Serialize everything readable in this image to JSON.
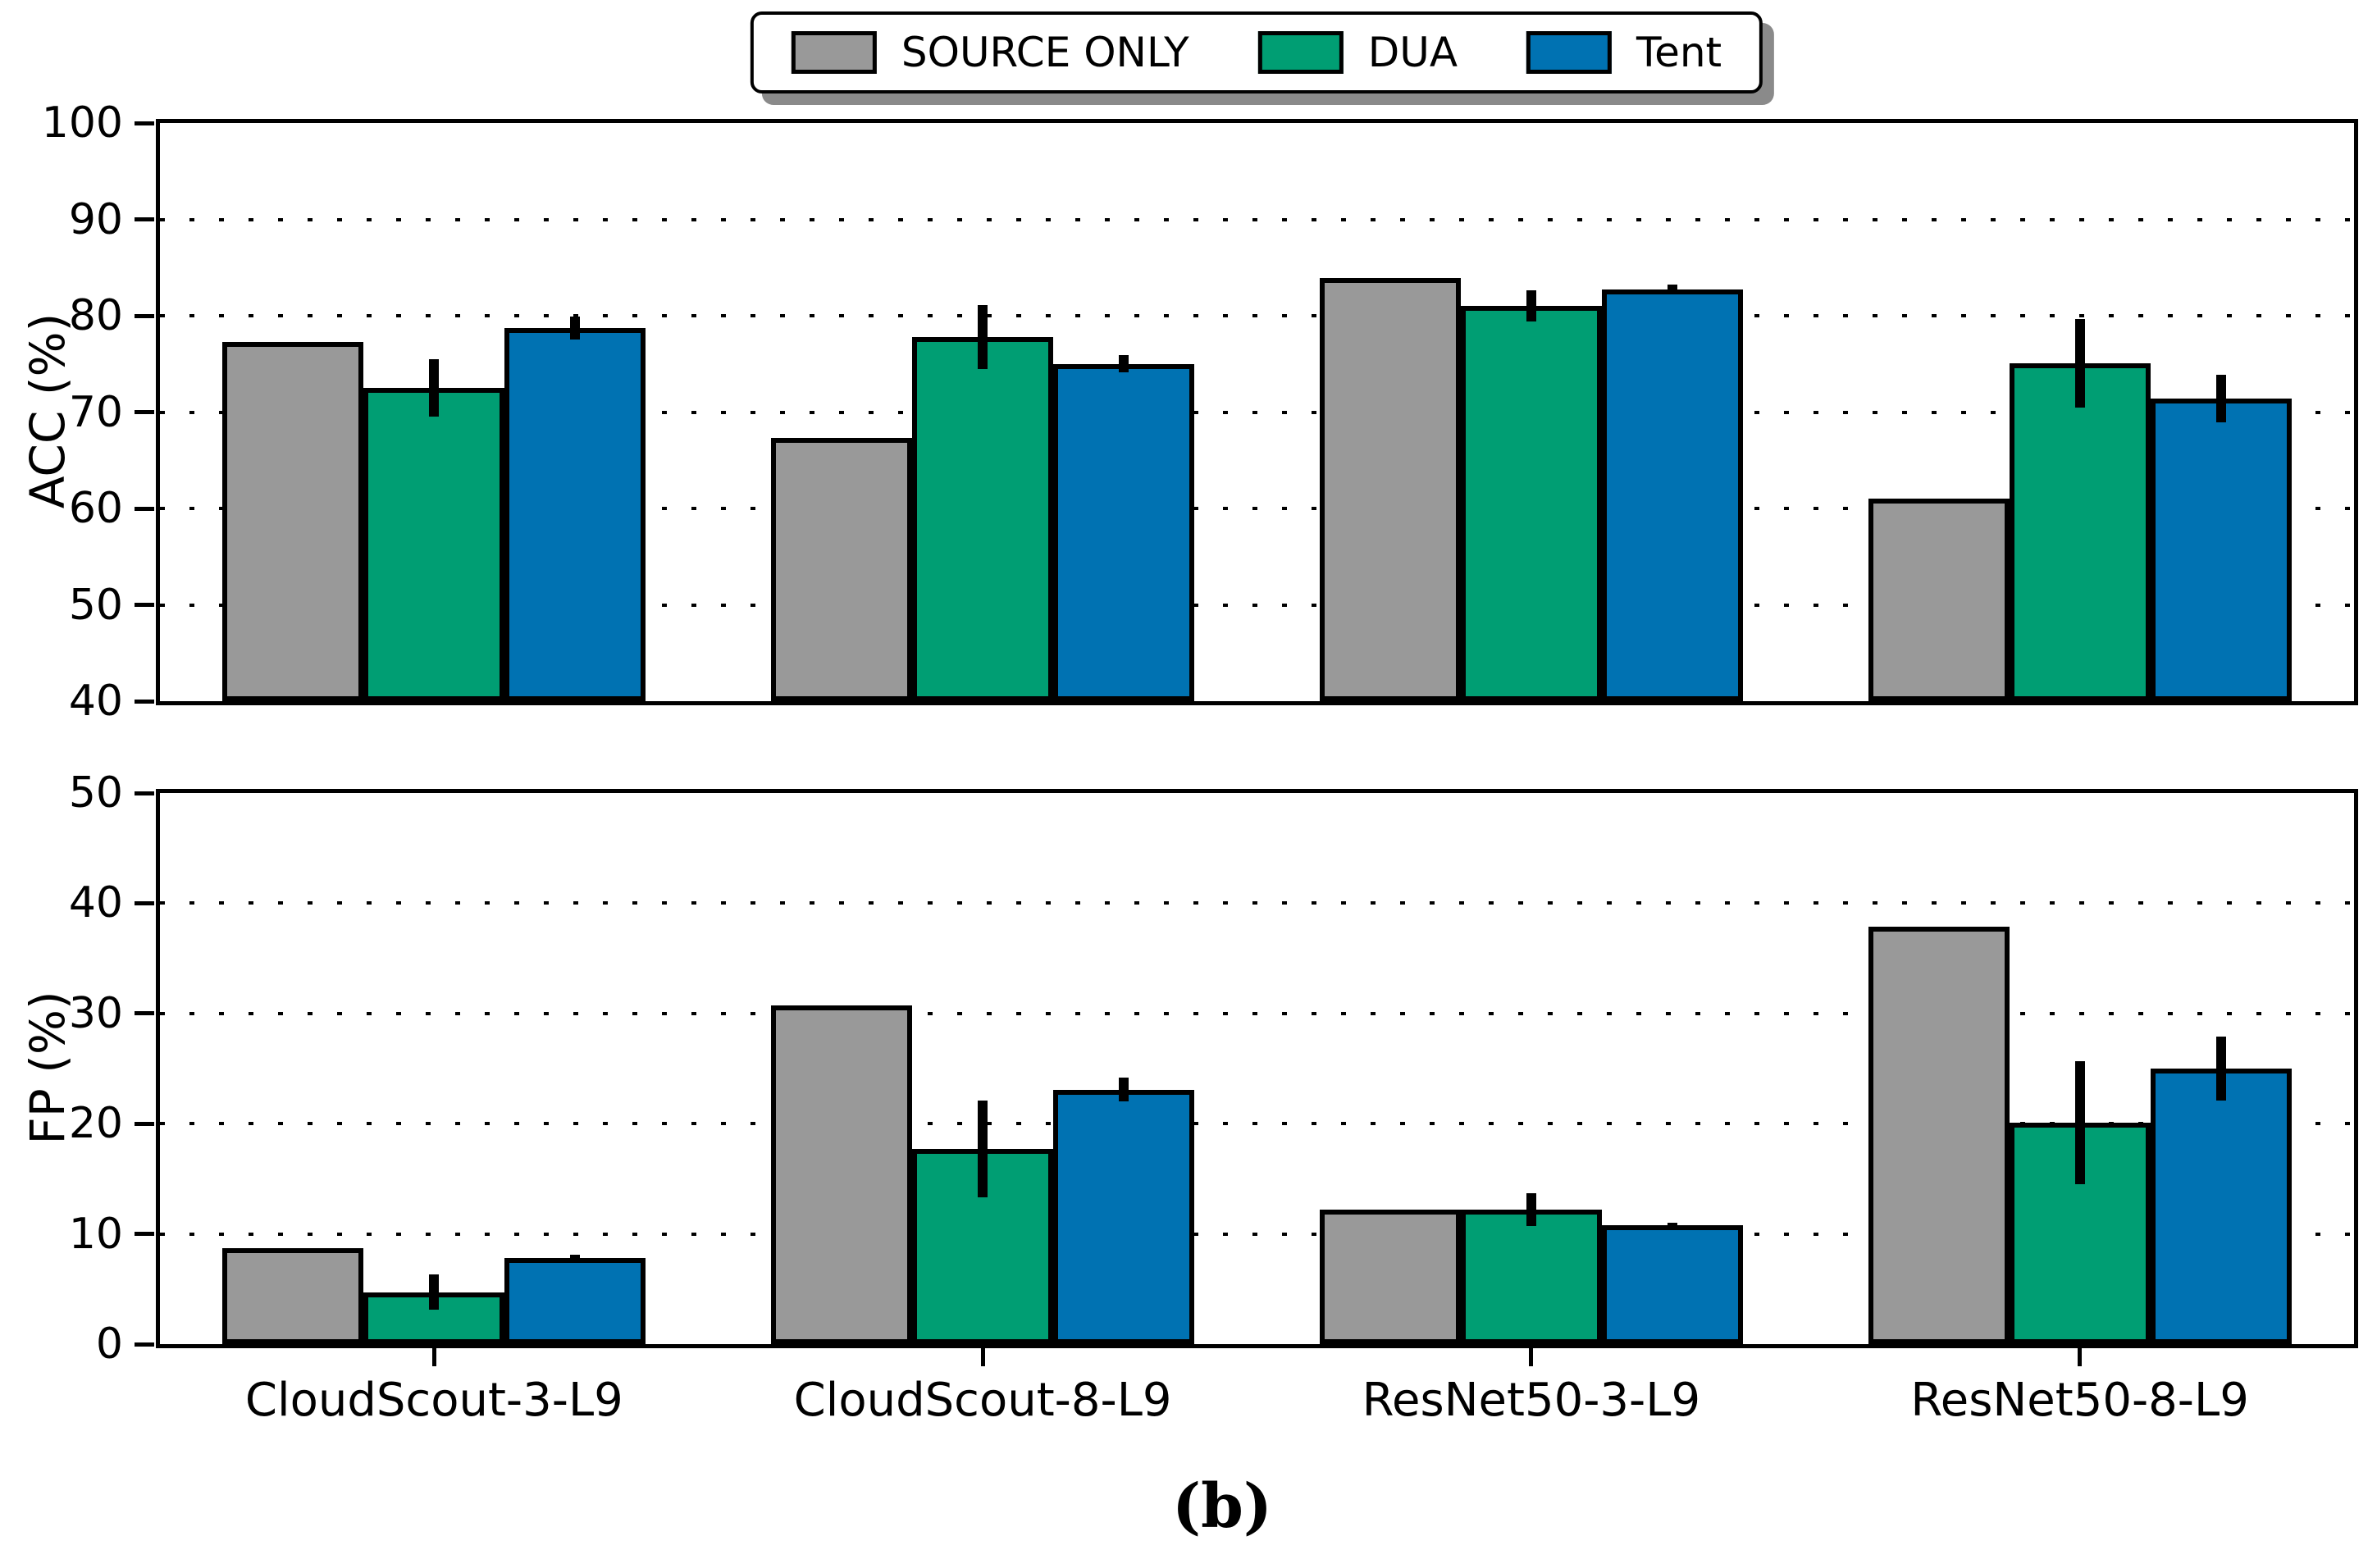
{
  "caption": "(b)",
  "legend": {
    "position": "top-center",
    "items": [
      {
        "label": "SOURCE ONLY",
        "color": "#999999"
      },
      {
        "label": "DUA",
        "color": "#009E73"
      },
      {
        "label": "Tent",
        "color": "#0072B2"
      }
    ]
  },
  "chart_data": [
    {
      "type": "bar",
      "panel": "top",
      "ylabel": "ACC (%)",
      "ylim": [
        40,
        100
      ],
      "yticks": [
        40,
        50,
        60,
        70,
        80,
        90,
        100
      ],
      "grid": "dotted-horizontal",
      "show_xticklabels": false,
      "show_xticks": false,
      "categories": [
        "CloudScout-3-L9",
        "CloudScout-8-L9",
        "ResNet50-3-L9",
        "ResNet50-8-L9"
      ],
      "series": [
        {
          "name": "SOURCE ONLY",
          "color": "#999999",
          "values": [
            77.3,
            67.3,
            83.9,
            61.0
          ],
          "errors": [
            0,
            0,
            0,
            0
          ]
        },
        {
          "name": "DUA",
          "color": "#009E73",
          "values": [
            72.5,
            77.8,
            81.0,
            75.1
          ],
          "errors": [
            3.0,
            3.3,
            1.6,
            4.6
          ]
        },
        {
          "name": "Tent",
          "color": "#0072B2",
          "values": [
            78.7,
            75.0,
            82.7,
            71.4
          ],
          "errors": [
            1.2,
            0.9,
            0.5,
            2.5
          ]
        }
      ]
    },
    {
      "type": "bar",
      "panel": "bottom",
      "ylabel": "FP (%)",
      "ylim": [
        0,
        50
      ],
      "yticks": [
        0,
        10,
        20,
        30,
        40,
        50
      ],
      "grid": "dotted-horizontal",
      "show_xticklabels": true,
      "show_xticks": true,
      "categories": [
        "CloudScout-3-L9",
        "CloudScout-8-L9",
        "ResNet50-3-L9",
        "ResNet50-8-L9"
      ],
      "series": [
        {
          "name": "SOURCE ONLY",
          "color": "#999999",
          "values": [
            8.7,
            30.7,
            12.2,
            37.9
          ],
          "errors": [
            0,
            0,
            0,
            0
          ]
        },
        {
          "name": "DUA",
          "color": "#009E73",
          "values": [
            4.7,
            17.7,
            12.2,
            20.1
          ],
          "errors": [
            1.6,
            4.4,
            1.5,
            5.6
          ]
        },
        {
          "name": "Tent",
          "color": "#0072B2",
          "values": [
            7.8,
            23.1,
            10.8,
            25.0
          ],
          "errors": [
            0.3,
            1.1,
            0.2,
            2.9
          ]
        }
      ]
    }
  ]
}
